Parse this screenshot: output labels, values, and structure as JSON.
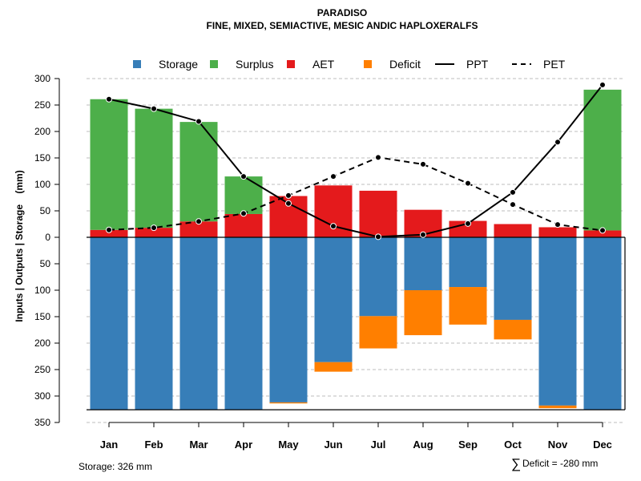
{
  "chart_data": {
    "type": "bar",
    "title": "PARADISO",
    "subtitle": "FINE, MIXED, SEMIACTIVE, MESIC ANDIC HAPLOXERALFS",
    "ylabel": "Inputs | Outputs | Storage    (mm)",
    "ylim": [
      -350,
      300
    ],
    "y_ticks": [
      300,
      250,
      200,
      150,
      100,
      50,
      0,
      -50,
      -100,
      -150,
      -200,
      -250,
      -300,
      -350
    ],
    "y_tick_labels": [
      "300",
      "250",
      "200",
      "150",
      "100",
      "50",
      "0",
      "50",
      "100",
      "150",
      "200",
      "250",
      "300",
      "350"
    ],
    "categories": [
      "Jan",
      "Feb",
      "Mar",
      "Apr",
      "May",
      "Jun",
      "Jul",
      "Aug",
      "Sep",
      "Oct",
      "Nov",
      "Dec"
    ],
    "legend": [
      {
        "name": "Storage",
        "kind": "box",
        "color": "#377EB8"
      },
      {
        "name": "Surplus",
        "kind": "box",
        "color": "#4DAF4A"
      },
      {
        "name": "AET",
        "kind": "box",
        "color": "#E41A1C"
      },
      {
        "name": "Deficit",
        "kind": "box",
        "color": "#FF7F00"
      },
      {
        "name": "PPT",
        "kind": "solid-line",
        "color": "#000000"
      },
      {
        "name": "PET",
        "kind": "dashed-line",
        "color": "#000000"
      }
    ],
    "series": [
      {
        "name": "AET",
        "color": "#E41A1C",
        "values": [
          14,
          18,
          30,
          44,
          78,
          98,
          88,
          52,
          31,
          25,
          19,
          13
        ]
      },
      {
        "name": "Surplus",
        "color": "#4DAF4A",
        "values": [
          247,
          225,
          188,
          71,
          0,
          0,
          0,
          0,
          0,
          0,
          0,
          266
        ]
      },
      {
        "name": "Storage",
        "color": "#377EB8",
        "values": [
          326,
          326,
          326,
          326,
          312,
          236,
          149,
          100,
          94,
          156,
          318,
          326
        ]
      },
      {
        "name": "Deficit",
        "color": "#FF7F00",
        "values": [
          0,
          0,
          0,
          0,
          2,
          18,
          61,
          85,
          71,
          37,
          5,
          0
        ]
      },
      {
        "name": "PPT",
        "color": "#000000",
        "values": [
          261,
          243,
          219,
          115,
          64,
          21,
          1,
          5,
          26,
          85,
          180,
          288
        ]
      },
      {
        "name": "PET",
        "color": "#000000",
        "values": [
          14,
          18,
          30,
          45,
          79,
          115,
          151,
          138,
          102,
          62,
          24,
          13
        ]
      }
    ],
    "grid": true,
    "legend_position": "top",
    "storage_label": "Storage: 326 mm",
    "deficit_symbol": "∑",
    "deficit_label": "Deficit = -280 mm"
  }
}
